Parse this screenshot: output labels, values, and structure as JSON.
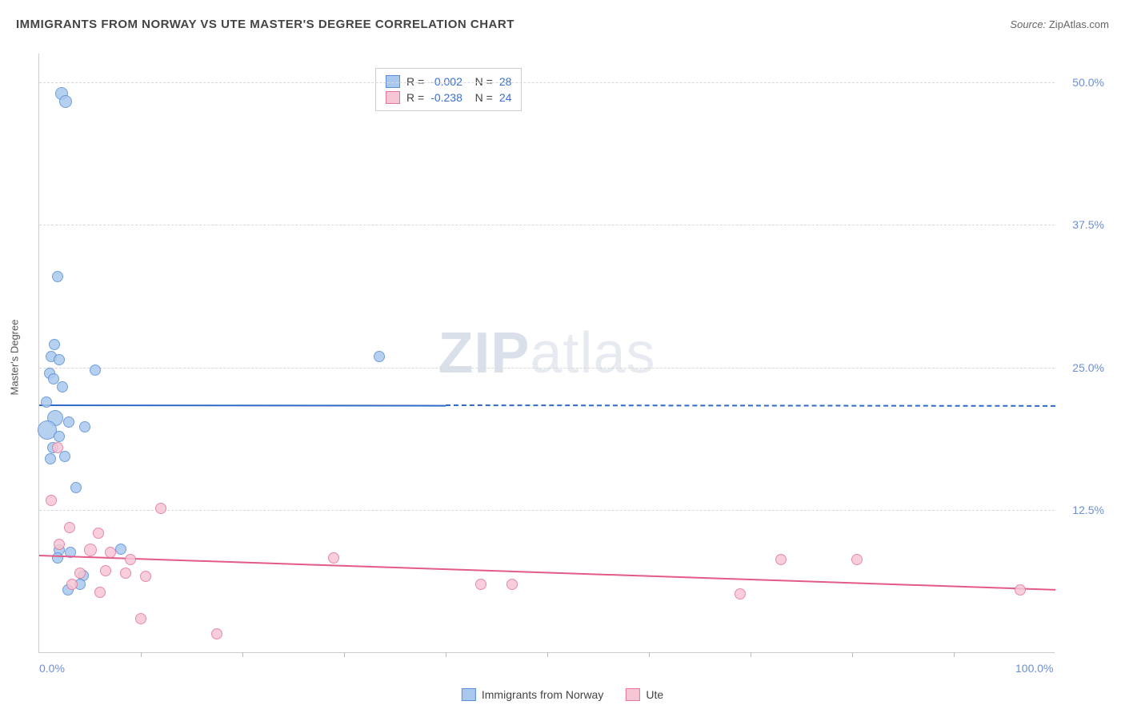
{
  "header": {
    "title": "IMMIGRANTS FROM NORWAY VS UTE MASTER'S DEGREE CORRELATION CHART",
    "source_label": "Source:",
    "source_value": "ZipAtlas.com"
  },
  "chart": {
    "type": "scatter",
    "ylabel": "Master's Degree",
    "watermark": {
      "bold": "ZIP",
      "light": "atlas"
    },
    "background_color": "#ffffff",
    "grid_color": "#d8d8d8",
    "axis_color": "#cccccc",
    "tick_color": "#6b8fd4",
    "xlim": [
      0,
      100
    ],
    "ylim": [
      0,
      52.5
    ],
    "yticks": [
      {
        "v": 12.5,
        "label": "12.5%"
      },
      {
        "v": 25.0,
        "label": "25.0%"
      },
      {
        "v": 37.5,
        "label": "37.5%"
      },
      {
        "v": 50.0,
        "label": "50.0%"
      }
    ],
    "xticks_labeled": [
      {
        "v": 0,
        "label": "0.0%"
      },
      {
        "v": 100,
        "label": "100.0%"
      }
    ],
    "xtick_marks": [
      10,
      20,
      30,
      40,
      50,
      60,
      70,
      80,
      90
    ],
    "series": [
      {
        "name": "Immigrants from Norway",
        "fill": "#aac8ee",
        "stroke": "#5a8fd6",
        "trend_color": "#2f6ac8",
        "R": "-0.002",
        "N": "28",
        "marker_r": 8,
        "trend": {
          "x0": 0,
          "y0": 21.8,
          "x1": 100,
          "y1": 21.7,
          "solid_until_x": 40
        },
        "points": [
          {
            "x": 2.2,
            "y": 49.0,
            "r": 8
          },
          {
            "x": 2.6,
            "y": 48.3,
            "r": 8
          },
          {
            "x": 1.8,
            "y": 33.0,
            "r": 7
          },
          {
            "x": 1.5,
            "y": 27.0,
            "r": 7
          },
          {
            "x": 1.2,
            "y": 26.0,
            "r": 7
          },
          {
            "x": 2.0,
            "y": 25.7,
            "r": 7
          },
          {
            "x": 5.5,
            "y": 24.8,
            "r": 7
          },
          {
            "x": 1.0,
            "y": 24.5,
            "r": 7
          },
          {
            "x": 1.4,
            "y": 24.0,
            "r": 7
          },
          {
            "x": 2.3,
            "y": 23.3,
            "r": 7
          },
          {
            "x": 0.7,
            "y": 22.0,
            "r": 7
          },
          {
            "x": 1.6,
            "y": 20.6,
            "r": 10
          },
          {
            "x": 2.9,
            "y": 20.2,
            "r": 7
          },
          {
            "x": 4.5,
            "y": 19.8,
            "r": 7
          },
          {
            "x": 0.8,
            "y": 19.5,
            "r": 12
          },
          {
            "x": 2.0,
            "y": 19.0,
            "r": 7
          },
          {
            "x": 1.3,
            "y": 18.0,
            "r": 7
          },
          {
            "x": 2.5,
            "y": 17.2,
            "r": 7
          },
          {
            "x": 1.1,
            "y": 17.0,
            "r": 7
          },
          {
            "x": 3.6,
            "y": 14.5,
            "r": 7
          },
          {
            "x": 33.5,
            "y": 26.0,
            "r": 7
          },
          {
            "x": 8.0,
            "y": 9.1,
            "r": 7
          },
          {
            "x": 2.0,
            "y": 9.0,
            "r": 7
          },
          {
            "x": 4.3,
            "y": 6.8,
            "r": 7
          },
          {
            "x": 4.0,
            "y": 6.0,
            "r": 7
          },
          {
            "x": 2.8,
            "y": 5.5,
            "r": 7
          },
          {
            "x": 3.1,
            "y": 8.8,
            "r": 7
          },
          {
            "x": 1.8,
            "y": 8.3,
            "r": 7
          }
        ]
      },
      {
        "name": "Ute",
        "fill": "#f6c6d4",
        "stroke": "#e2769b",
        "trend_color": "#e35a8a",
        "R": "-0.238",
        "N": "24",
        "marker_r": 8,
        "trend": {
          "x0": 0,
          "y0": 8.6,
          "x1": 100,
          "y1": 5.6,
          "solid_until_x": 100
        },
        "points": [
          {
            "x": 1.8,
            "y": 18.0,
            "r": 7
          },
          {
            "x": 1.2,
            "y": 13.4,
            "r": 7
          },
          {
            "x": 12.0,
            "y": 12.7,
            "r": 7
          },
          {
            "x": 3.0,
            "y": 11.0,
            "r": 7
          },
          {
            "x": 5.8,
            "y": 10.5,
            "r": 7
          },
          {
            "x": 2.0,
            "y": 9.5,
            "r": 7
          },
          {
            "x": 5.0,
            "y": 9.0,
            "r": 8
          },
          {
            "x": 7.0,
            "y": 8.8,
            "r": 7
          },
          {
            "x": 9.0,
            "y": 8.2,
            "r": 7
          },
          {
            "x": 6.5,
            "y": 7.2,
            "r": 7
          },
          {
            "x": 4.0,
            "y": 7.0,
            "r": 7
          },
          {
            "x": 8.5,
            "y": 7.0,
            "r": 7
          },
          {
            "x": 10.5,
            "y": 6.7,
            "r": 7
          },
          {
            "x": 3.2,
            "y": 6.0,
            "r": 7
          },
          {
            "x": 6.0,
            "y": 5.3,
            "r": 7
          },
          {
            "x": 10.0,
            "y": 3.0,
            "r": 7
          },
          {
            "x": 17.5,
            "y": 1.7,
            "r": 7
          },
          {
            "x": 29.0,
            "y": 8.3,
            "r": 7
          },
          {
            "x": 43.5,
            "y": 6.0,
            "r": 7
          },
          {
            "x": 46.5,
            "y": 6.0,
            "r": 7
          },
          {
            "x": 69.0,
            "y": 5.2,
            "r": 7
          },
          {
            "x": 73.0,
            "y": 8.2,
            "r": 7
          },
          {
            "x": 80.5,
            "y": 8.2,
            "r": 7
          },
          {
            "x": 96.5,
            "y": 5.5,
            "r": 7
          }
        ]
      }
    ]
  },
  "legend_bottom": [
    {
      "label": "Immigrants from Norway",
      "fill": "#aac8ee",
      "stroke": "#5a8fd6"
    },
    {
      "label": "Ute",
      "fill": "#f6c6d4",
      "stroke": "#e2769b"
    }
  ]
}
